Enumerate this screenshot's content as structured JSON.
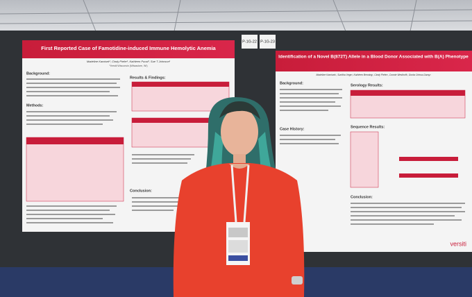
{
  "signs": [
    "P-1G-22",
    "P-1G-23"
  ],
  "posters": [
    {
      "title": "First Reported Case of Famotidine-induced Immune Hemolytic Anemia",
      "authors": "Madeline Kamisek¹, Cindy Piefer¹, Kathleen Pucal¹, Sue T Johnson¹",
      "affiliation": "¹Versiti Wisconsin (Milwaukee, WI)",
      "sections": [
        "Background:",
        "Methods:",
        "Results & Findings:",
        "Conclusion:"
      ]
    },
    {
      "title": "Identification of a Novel B(872T) Allele in a Blood Donor Associated with B(A) Phenotype",
      "authors": "Madeline Kamisek¹, Sunitha Vege², Kathleen Benning¹, Cindy Piefer¹, Connie Westhoff², Gorka Ochoa-Garay²",
      "sections": [
        "Background:",
        "Case History:",
        "Serology Results:",
        "Sequence Results:",
        "Conclusion:"
      ],
      "logo": "versiti"
    }
  ]
}
